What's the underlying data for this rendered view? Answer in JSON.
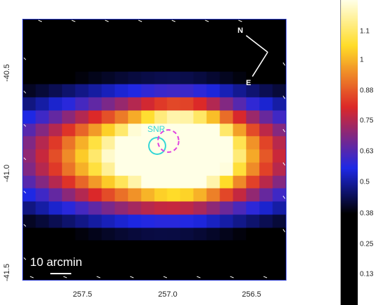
{
  "map": {
    "y_ticks": [
      "-40.5",
      "-41.0",
      "-41.5"
    ],
    "x_ticks": [
      "257.5",
      "257.0",
      "256.5"
    ],
    "scale_label": "10 arcmin",
    "compass_north": "N",
    "compass_east": "E",
    "source_label": "SNR",
    "colors": {
      "frame": "#2a3bd1",
      "source_circle": "#33d6d6",
      "dashed_circle": "#e040e0"
    }
  },
  "colorbar": {
    "labels": [
      "1.1",
      "1",
      "0.88",
      "0.75",
      "0.63",
      "0.5",
      "0.38",
      "0.25",
      "0.13"
    ],
    "colormap": "black-blue-red-yellow-white"
  }
}
